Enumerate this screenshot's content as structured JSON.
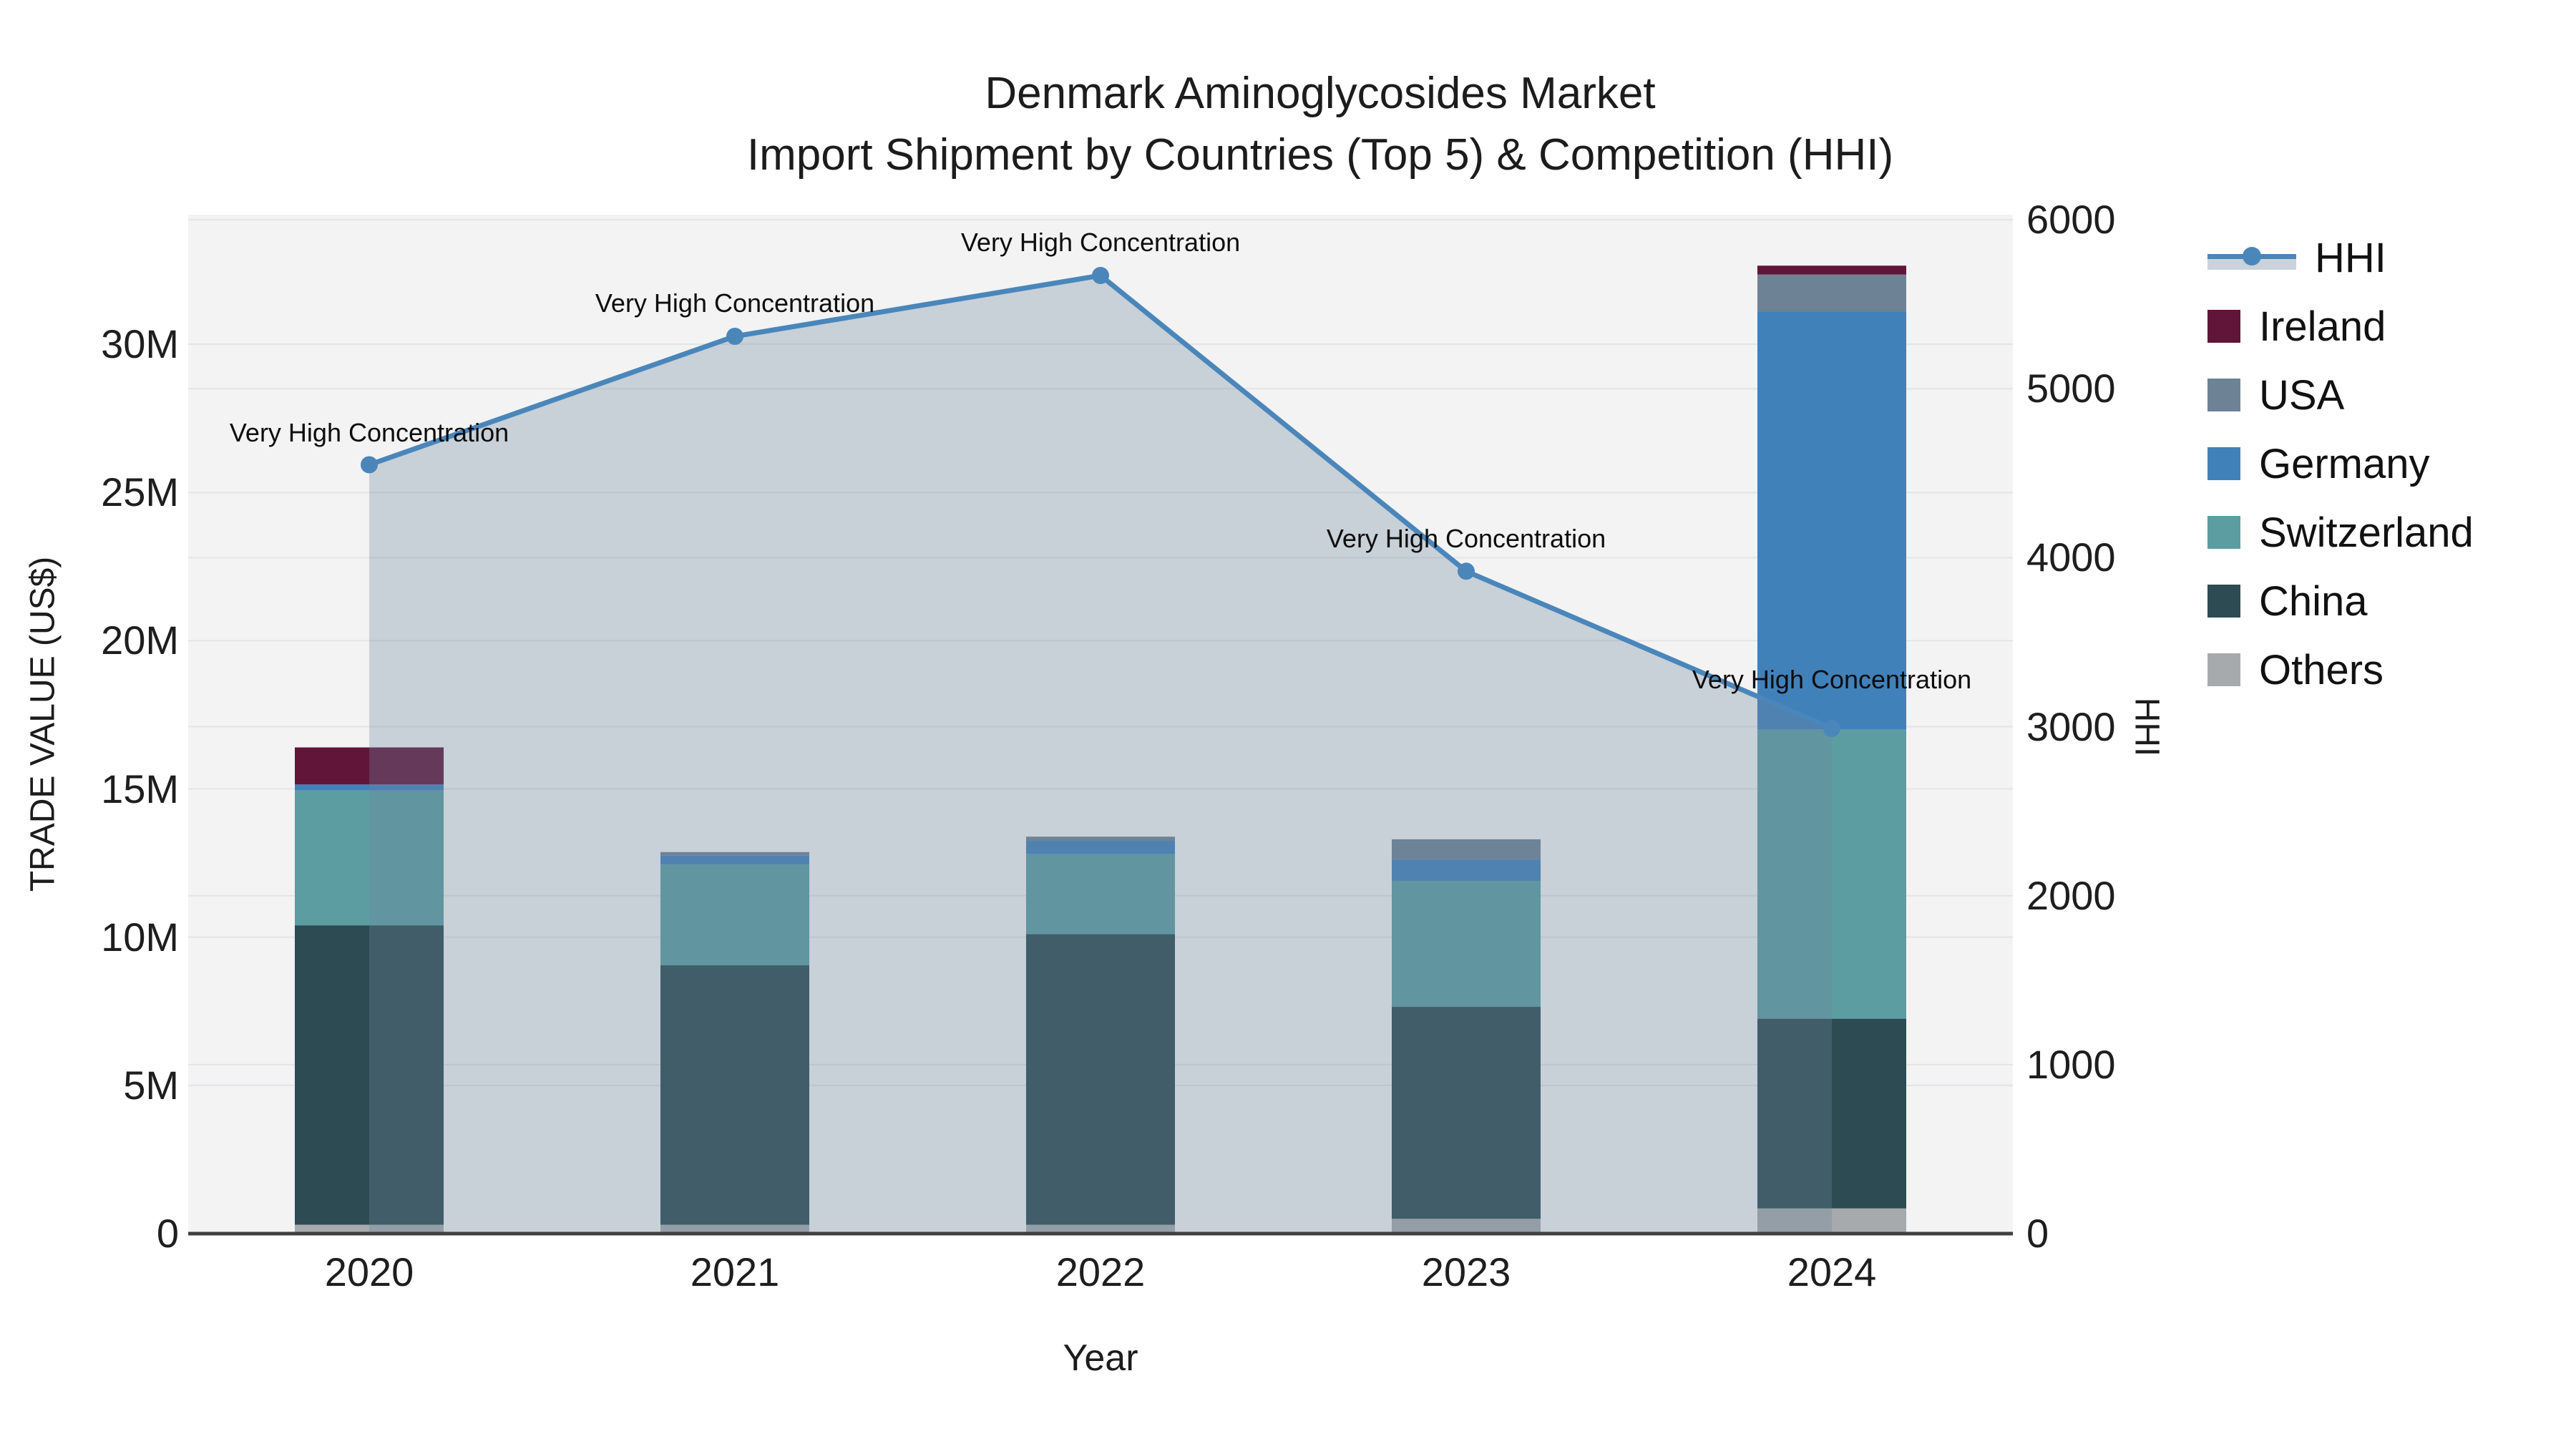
{
  "title": {
    "line1": "Denmark Aminoglycosides Market",
    "line2": "Import Shipment by Countries (Top 5) & Competition (HHI)"
  },
  "axes": {
    "x": {
      "title": "Year",
      "categories": [
        "2020",
        "2021",
        "2022",
        "2023",
        "2024"
      ]
    },
    "y_left": {
      "title": "TRADE VALUE (US$)",
      "tick_labels": [
        "0",
        "5M",
        "10M",
        "15M",
        "20M",
        "25M",
        "30M"
      ],
      "tick_values_millions": [
        0,
        5,
        10,
        15,
        20,
        25,
        30
      ],
      "range_millions": [
        0,
        34.37
      ]
    },
    "y_right": {
      "title": "HHI",
      "tick_labels": [
        "0",
        "1000",
        "2000",
        "3000",
        "4000",
        "5000",
        "6000"
      ],
      "tick_values": [
        0,
        1000,
        2000,
        3000,
        4000,
        5000,
        6000
      ],
      "range": [
        0,
        6030
      ]
    }
  },
  "legend": [
    {
      "label": "HHI",
      "type": "line",
      "color": "#4a86ba"
    },
    {
      "label": "Ireland",
      "type": "square",
      "color": "#611539"
    },
    {
      "label": "USA",
      "type": "square",
      "color": "#6e8296"
    },
    {
      "label": "Germany",
      "type": "square",
      "color": "#4181ba"
    },
    {
      "label": "Switzerland",
      "type": "square",
      "color": "#5c9da1"
    },
    {
      "label": "China",
      "type": "square",
      "color": "#2d4b52"
    },
    {
      "label": "Others",
      "type": "square",
      "color": "#a7aaac"
    }
  ],
  "chart_data": {
    "type": "combo-stacked-bar-line",
    "title": "Denmark Aminoglycosides Market — Import Shipment by Countries (Top 5) & Competition (HHI)",
    "categories": [
      "2020",
      "2021",
      "2022",
      "2023",
      "2024"
    ],
    "bar_value_unit": "million US$",
    "stack_order_bottom_to_top": [
      "Others",
      "China",
      "Switzerland",
      "Germany",
      "USA",
      "Ireland"
    ],
    "series": [
      {
        "name": "Others",
        "color": "#a7aaac",
        "values": [
          0.3,
          0.3,
          0.3,
          0.5,
          0.85
        ]
      },
      {
        "name": "China",
        "color": "#2d4b52",
        "values": [
          10.1,
          8.75,
          9.8,
          7.15,
          6.4
        ]
      },
      {
        "name": "Switzerland",
        "color": "#5c9da1",
        "values": [
          4.55,
          3.4,
          2.7,
          4.25,
          9.75
        ]
      },
      {
        "name": "Germany",
        "color": "#4181ba",
        "values": [
          0.2,
          0.3,
          0.45,
          0.72,
          14.1
        ]
      },
      {
        "name": "USA",
        "color": "#6e8296",
        "values": [
          0.0,
          0.12,
          0.14,
          0.68,
          1.25
        ]
      },
      {
        "name": "Ireland",
        "color": "#611539",
        "values": [
          1.25,
          0.0,
          0.0,
          0.0,
          0.3
        ]
      }
    ],
    "bar_totals_millions": [
      16.4,
      12.87,
      13.39,
      13.3,
      32.65
    ],
    "line_series": {
      "name": "HHI",
      "axis": "right",
      "color": "#4a86ba",
      "fill_color": "rgba(108,133,160,0.32)",
      "values": [
        4550,
        5310,
        5670,
        3920,
        2990
      ]
    },
    "annotations": [
      {
        "text": "Very High Concentration",
        "category": "2020"
      },
      {
        "text": "Very High Concentration",
        "category": "2021"
      },
      {
        "text": "Very High Concentration",
        "category": "2022"
      },
      {
        "text": "Very High Concentration",
        "category": "2023"
      },
      {
        "text": "Very High Concentration",
        "category": "2024"
      }
    ],
    "xlabel": "Year",
    "ylabel_left": "TRADE VALUE (US$)",
    "ylabel_right": "HHI",
    "ylim_left_millions": [
      0,
      34.37
    ],
    "ylim_right": [
      0,
      6030
    ],
    "grid": true,
    "legend_position": "right"
  },
  "colors": {
    "plot_background": "#f3f3f4",
    "figure_background": "#ffffff",
    "gridline": "#e4e4e6",
    "zero_axis_line": "#3f3f3f",
    "hhi_line": "#4a86ba",
    "hhi_area_fill": "rgba(108,133,160,0.32)",
    "text": "#1c1c1c"
  }
}
